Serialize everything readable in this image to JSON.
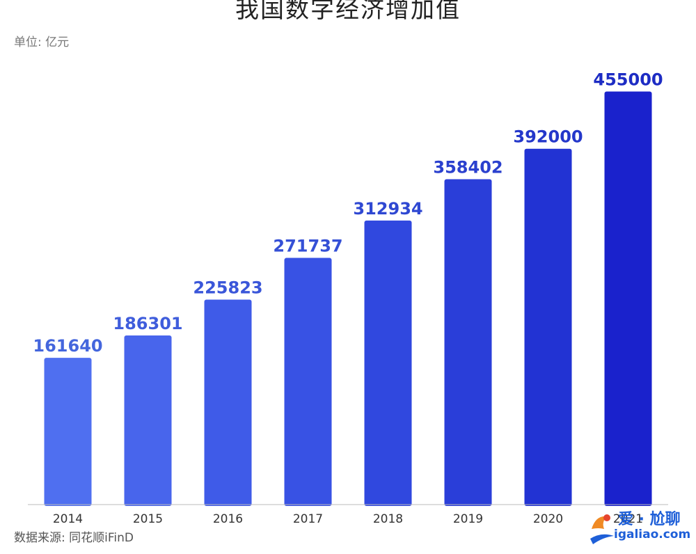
{
  "chart_data": {
    "type": "bar",
    "title": "我国数字经济增加值",
    "unit_label": "单位: 亿元",
    "source_label": "数据来源: 同花顺iFinD",
    "categories": [
      "2014",
      "2015",
      "2016",
      "2017",
      "2018",
      "2019",
      "2020",
      "2021"
    ],
    "values": [
      161640,
      186301,
      225823,
      271737,
      312934,
      358402,
      392000,
      455000
    ],
    "data_labels": [
      "161640",
      "186301",
      "225823",
      "271737",
      "312934",
      "358402",
      "392000",
      "455000"
    ],
    "ylim": [
      0,
      460000
    ],
    "grid": false,
    "legend": "none",
    "colors": {
      "bars": [
        "#4f6ff0",
        "#4865ec",
        "#3f5be8",
        "#3852e4",
        "#3048df",
        "#2a3ed9",
        "#2233d3",
        "#1a22cc"
      ],
      "labels": [
        "#4466dd",
        "#3f5ddc",
        "#3a56d9",
        "#3550d6",
        "#2f48d2",
        "#2a40ce",
        "#2437ca",
        "#1d2cc4"
      ],
      "axis": "#bbbbbb"
    }
  },
  "watermark": {
    "text": "爱 · 尬聊",
    "url": "igaliao.com"
  }
}
